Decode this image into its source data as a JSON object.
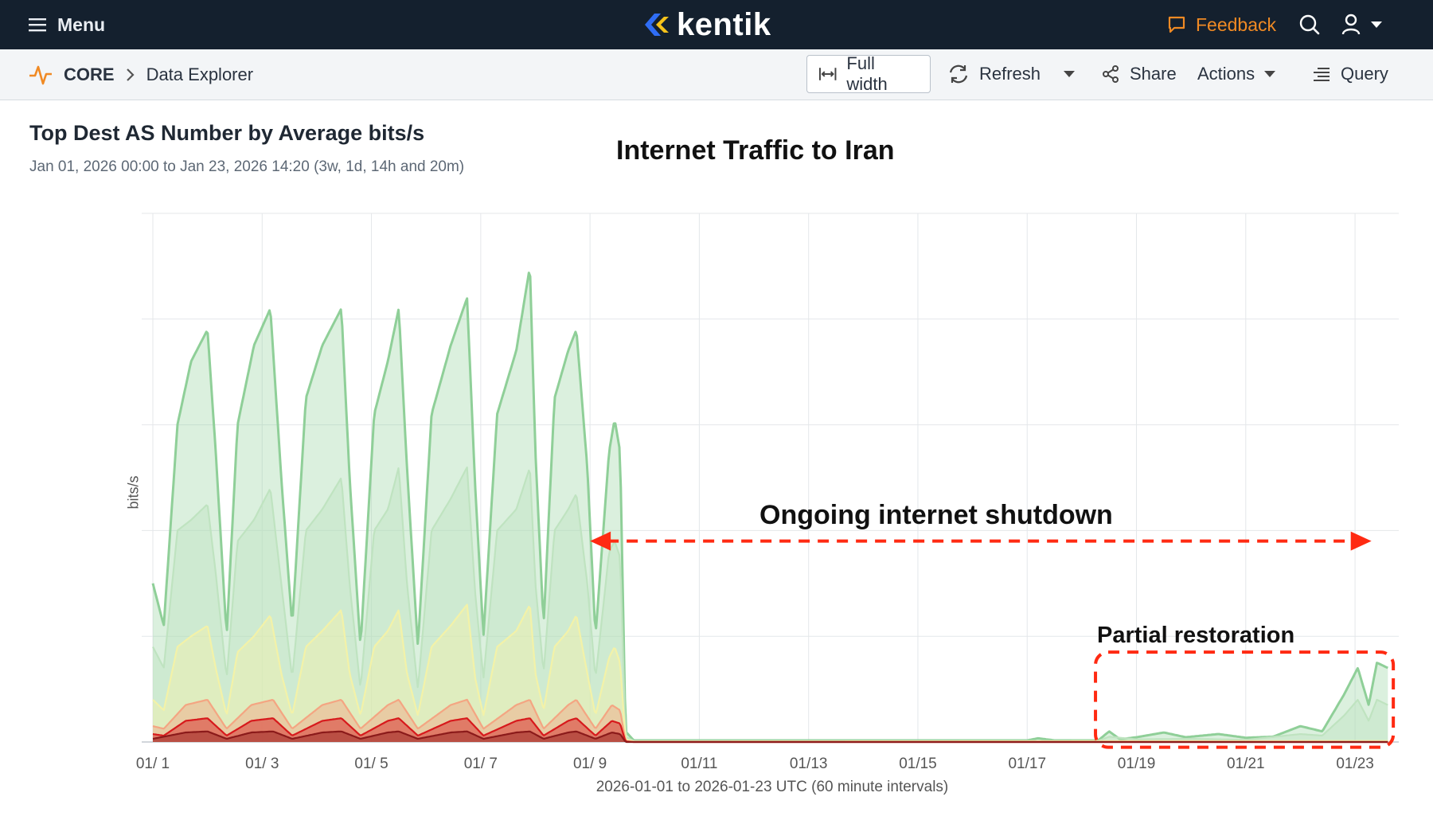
{
  "topbar": {
    "menu_label": "Menu",
    "logo_text": "kentik",
    "feedback_label": "Feedback",
    "icons": {
      "menu": "hamburger-icon",
      "feedback": "chat-bubble-icon",
      "search": "search-icon",
      "user": "user-icon"
    }
  },
  "breadcrumb": {
    "section": "CORE",
    "page": "Data Explorer"
  },
  "toolbar": {
    "full_width_label": "Full width",
    "refresh_label": "Refresh",
    "share_label": "Share",
    "actions_label": "Actions",
    "query_label": "Query"
  },
  "chart": {
    "title": "Top Dest AS Number by Average bits/s",
    "subtitle": "Jan 01, 2026 00:00 to Jan 23, 2026 14:20 (3w, 1d, 14h and 20m)",
    "overlay_title": "Internet Traffic to Iran",
    "annotation_shutdown": "Ongoing internet shutdown",
    "annotation_partial": "Partial restoration",
    "ylabel": "bits/s",
    "xlabel": "2026-01-01 to 2026-01-23 UTC (60 minute intervals)"
  },
  "chart_data": {
    "type": "area",
    "stacked": true,
    "x_start_day": 1,
    "x_end_day": 23.6,
    "x_ticks": [
      "01/ 1",
      "01/ 3",
      "01/ 5",
      "01/ 7",
      "01/ 9",
      "01/11",
      "01/13",
      "01/15",
      "01/17",
      "01/19",
      "01/21",
      "01/23"
    ],
    "x_tick_days": [
      1,
      3,
      5,
      7,
      9,
      11,
      13,
      15,
      17,
      19,
      21,
      23
    ],
    "ylim": [
      0,
      100
    ],
    "y_gridlines": 5,
    "grid": true,
    "series": [
      {
        "name": "",
        "color": "#8fcf98",
        "points": [
          [
            1,
            30
          ],
          [
            1.2,
            22
          ],
          [
            1.45,
            60
          ],
          [
            1.7,
            72
          ],
          [
            2.0,
            78
          ],
          [
            2.15,
            55
          ],
          [
            2.35,
            20
          ],
          [
            2.55,
            60
          ],
          [
            2.85,
            75
          ],
          [
            3.15,
            82
          ],
          [
            3.35,
            50
          ],
          [
            3.55,
            22
          ],
          [
            3.8,
            65
          ],
          [
            4.1,
            75
          ],
          [
            4.45,
            82
          ],
          [
            4.6,
            50
          ],
          [
            4.8,
            18
          ],
          [
            5.05,
            62
          ],
          [
            5.3,
            72
          ],
          [
            5.5,
            82
          ],
          [
            5.65,
            52
          ],
          [
            5.85,
            18
          ],
          [
            6.1,
            62
          ],
          [
            6.45,
            75
          ],
          [
            6.75,
            84
          ],
          [
            6.9,
            48
          ],
          [
            7.05,
            20
          ],
          [
            7.3,
            62
          ],
          [
            7.65,
            74
          ],
          [
            7.9,
            90
          ],
          [
            8.0,
            55
          ],
          [
            8.15,
            22
          ],
          [
            8.35,
            65
          ],
          [
            8.6,
            74
          ],
          [
            8.75,
            78
          ],
          [
            8.95,
            52
          ],
          [
            9.1,
            20
          ],
          [
            9.35,
            55
          ],
          [
            9.45,
            61
          ],
          [
            9.55,
            55
          ],
          [
            9.65,
            2
          ],
          [
            9.8,
            0.3
          ],
          [
            17.0,
            0.3
          ],
          [
            17.2,
            0.7
          ],
          [
            17.5,
            0.3
          ],
          [
            18.3,
            0.3
          ],
          [
            18.5,
            2
          ],
          [
            18.7,
            0.5
          ],
          [
            19.0,
            0.9
          ],
          [
            19.5,
            1.8
          ],
          [
            19.9,
            0.9
          ],
          [
            20.5,
            1.5
          ],
          [
            21.0,
            0.8
          ],
          [
            21.5,
            1.0
          ],
          [
            22.0,
            3.0
          ],
          [
            22.4,
            2.0
          ],
          [
            22.8,
            9
          ],
          [
            23.05,
            14
          ],
          [
            23.25,
            7
          ],
          [
            23.4,
            15
          ],
          [
            23.6,
            14
          ]
        ]
      },
      {
        "name": "",
        "color": "#bfe3c0",
        "points": [
          [
            1,
            18
          ],
          [
            1.2,
            14
          ],
          [
            1.45,
            40
          ],
          [
            1.7,
            42
          ],
          [
            2.0,
            45
          ],
          [
            2.15,
            32
          ],
          [
            2.35,
            12
          ],
          [
            2.55,
            38
          ],
          [
            2.85,
            42
          ],
          [
            3.15,
            48
          ],
          [
            3.35,
            30
          ],
          [
            3.55,
            12
          ],
          [
            3.8,
            40
          ],
          [
            4.1,
            44
          ],
          [
            4.45,
            50
          ],
          [
            4.6,
            30
          ],
          [
            4.8,
            10
          ],
          [
            5.05,
            40
          ],
          [
            5.3,
            44
          ],
          [
            5.5,
            52
          ],
          [
            5.65,
            30
          ],
          [
            5.85,
            10
          ],
          [
            6.1,
            40
          ],
          [
            6.45,
            46
          ],
          [
            6.75,
            52
          ],
          [
            6.9,
            28
          ],
          [
            7.05,
            12
          ],
          [
            7.3,
            40
          ],
          [
            7.65,
            44
          ],
          [
            7.9,
            52
          ],
          [
            8.0,
            30
          ],
          [
            8.15,
            13
          ],
          [
            8.35,
            40
          ],
          [
            8.6,
            44
          ],
          [
            8.75,
            47
          ],
          [
            8.95,
            30
          ],
          [
            9.1,
            12
          ],
          [
            9.35,
            36
          ],
          [
            9.45,
            38
          ],
          [
            9.55,
            35
          ],
          [
            9.65,
            1
          ],
          [
            9.8,
            0.2
          ],
          [
            18.3,
            0.2
          ],
          [
            18.5,
            1
          ],
          [
            19.0,
            0.5
          ],
          [
            20.0,
            0.6
          ],
          [
            21.0,
            0.4
          ],
          [
            22.0,
            1.5
          ],
          [
            22.4,
            1.2
          ],
          [
            22.8,
            5
          ],
          [
            23.05,
            8
          ],
          [
            23.25,
            4
          ],
          [
            23.4,
            8
          ],
          [
            23.6,
            7
          ]
        ]
      },
      {
        "name": "",
        "color": "#f3f2a8",
        "points": [
          [
            1,
            8
          ],
          [
            1.2,
            6
          ],
          [
            1.45,
            18
          ],
          [
            1.7,
            20
          ],
          [
            2.0,
            22
          ],
          [
            2.15,
            14
          ],
          [
            2.35,
            5
          ],
          [
            2.55,
            17
          ],
          [
            2.85,
            20
          ],
          [
            3.15,
            24
          ],
          [
            3.35,
            13
          ],
          [
            3.55,
            5
          ],
          [
            3.8,
            18
          ],
          [
            4.1,
            21
          ],
          [
            4.45,
            25
          ],
          [
            4.6,
            13
          ],
          [
            4.8,
            5
          ],
          [
            5.05,
            18
          ],
          [
            5.3,
            21
          ],
          [
            5.5,
            25
          ],
          [
            5.65,
            13
          ],
          [
            5.85,
            5
          ],
          [
            6.1,
            18
          ],
          [
            6.45,
            22
          ],
          [
            6.75,
            26
          ],
          [
            6.9,
            12
          ],
          [
            7.05,
            5
          ],
          [
            7.3,
            18
          ],
          [
            7.65,
            21
          ],
          [
            7.9,
            26
          ],
          [
            8.0,
            13
          ],
          [
            8.15,
            6
          ],
          [
            8.35,
            18
          ],
          [
            8.6,
            21
          ],
          [
            8.75,
            24
          ],
          [
            8.95,
            13
          ],
          [
            9.1,
            5
          ],
          [
            9.35,
            16
          ],
          [
            9.45,
            18
          ],
          [
            9.55,
            15
          ],
          [
            9.65,
            0.5
          ],
          [
            9.8,
            0.1
          ],
          [
            23.6,
            0.2
          ]
        ]
      },
      {
        "name": "",
        "color": "#f4a582",
        "points": [
          [
            1,
            3
          ],
          [
            1.2,
            2.5
          ],
          [
            1.6,
            7
          ],
          [
            2.0,
            8
          ],
          [
            2.35,
            2.5
          ],
          [
            2.8,
            7
          ],
          [
            3.2,
            8
          ],
          [
            3.55,
            2.5
          ],
          [
            4.1,
            7
          ],
          [
            4.45,
            8
          ],
          [
            4.8,
            2.5
          ],
          [
            5.3,
            7
          ],
          [
            5.5,
            8
          ],
          [
            5.85,
            2.5
          ],
          [
            6.45,
            7
          ],
          [
            6.75,
            8
          ],
          [
            7.05,
            2.5
          ],
          [
            7.65,
            7
          ],
          [
            7.9,
            8
          ],
          [
            8.15,
            2.5
          ],
          [
            8.6,
            7
          ],
          [
            8.75,
            8
          ],
          [
            9.1,
            2.5
          ],
          [
            9.4,
            7
          ],
          [
            9.55,
            6
          ],
          [
            9.65,
            0.2
          ],
          [
            9.8,
            0
          ],
          [
            23.6,
            0
          ]
        ]
      },
      {
        "name": "",
        "color": "#d7191c",
        "points": [
          [
            1,
            1.5
          ],
          [
            1.2,
            1.2
          ],
          [
            1.6,
            4
          ],
          [
            2.0,
            4.5
          ],
          [
            2.35,
            1.2
          ],
          [
            2.8,
            4
          ],
          [
            3.2,
            4.5
          ],
          [
            3.55,
            1.2
          ],
          [
            4.1,
            4
          ],
          [
            4.45,
            4.5
          ],
          [
            4.8,
            1.2
          ],
          [
            5.3,
            4
          ],
          [
            5.5,
            4.5
          ],
          [
            5.85,
            1.2
          ],
          [
            6.45,
            4
          ],
          [
            6.75,
            4.5
          ],
          [
            7.05,
            1.2
          ],
          [
            7.65,
            4
          ],
          [
            7.9,
            4.5
          ],
          [
            8.15,
            1.2
          ],
          [
            8.6,
            4
          ],
          [
            8.75,
            4.5
          ],
          [
            9.1,
            1.2
          ],
          [
            9.4,
            4
          ],
          [
            9.55,
            3.5
          ],
          [
            9.65,
            0.1
          ],
          [
            9.8,
            0
          ],
          [
            23.6,
            0
          ]
        ]
      },
      {
        "name": "",
        "color": "#8b1a1a",
        "points": [
          [
            1,
            0.6
          ],
          [
            1.6,
            1.8
          ],
          [
            2.0,
            2
          ],
          [
            2.35,
            0.6
          ],
          [
            2.8,
            1.8
          ],
          [
            3.2,
            2
          ],
          [
            3.55,
            0.6
          ],
          [
            4.1,
            1.8
          ],
          [
            4.45,
            2
          ],
          [
            4.8,
            0.6
          ],
          [
            5.3,
            1.8
          ],
          [
            5.5,
            2
          ],
          [
            5.85,
            0.6
          ],
          [
            6.45,
            1.8
          ],
          [
            6.75,
            2
          ],
          [
            7.05,
            0.6
          ],
          [
            7.65,
            1.8
          ],
          [
            7.9,
            2
          ],
          [
            8.15,
            0.6
          ],
          [
            8.6,
            1.8
          ],
          [
            8.75,
            2
          ],
          [
            9.1,
            0.6
          ],
          [
            9.4,
            1.8
          ],
          [
            9.55,
            1.5
          ],
          [
            9.65,
            0
          ],
          [
            23.6,
            0
          ]
        ]
      }
    ],
    "annotations": [
      {
        "type": "double-arrow",
        "from_day": 9.0,
        "to_day": 23.3,
        "y": 38,
        "color": "#ff2a12"
      },
      {
        "type": "dashed-box",
        "from_day": 18.25,
        "to_day": 23.7,
        "y_from": -1,
        "y_to": 17,
        "color": "#ff2a12"
      }
    ]
  }
}
